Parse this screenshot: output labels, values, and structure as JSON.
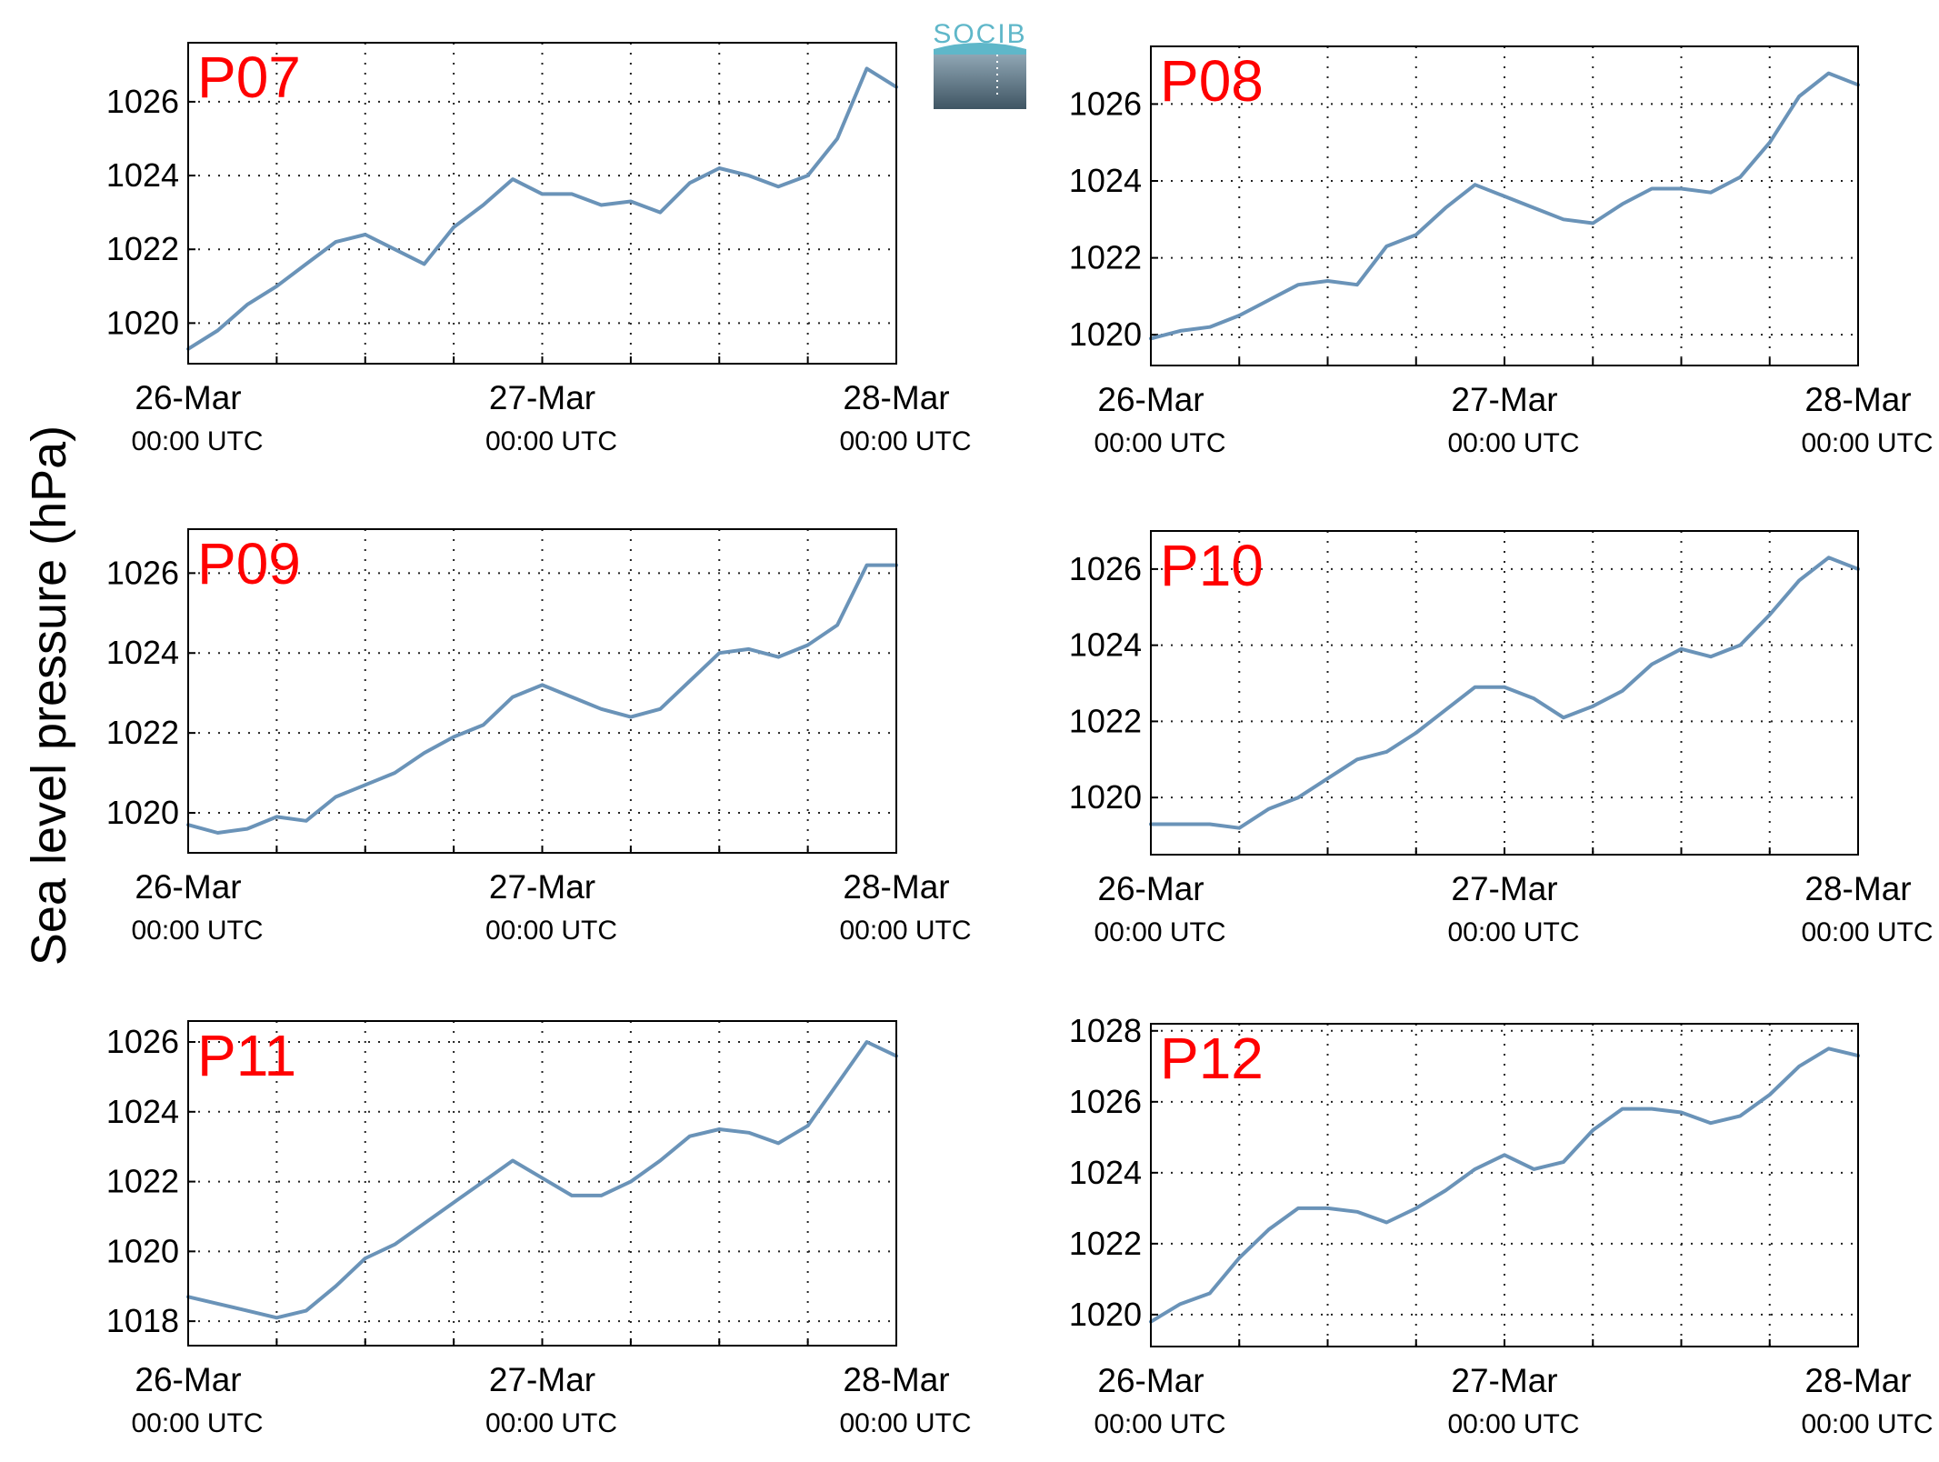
{
  "figure": {
    "ylabel": "Sea level pressure (hPa)",
    "logo_text": "SOCIB",
    "line_color": "#6a93b8",
    "title_color": "#ff0000"
  },
  "chart_data": [
    {
      "type": "line",
      "title": "P07",
      "x_ticks": [
        {
          "date": "26-Mar",
          "time": "00:00 UTC"
        },
        {
          "date": "27-Mar",
          "time": "00:00 UTC"
        },
        {
          "date": "28-Mar",
          "time": "00:00 UTC"
        }
      ],
      "x_range": [
        "26-Mar 00:00",
        "28-Mar 00:00"
      ],
      "x_hours_per_grid": 6,
      "ylim": [
        1018.9,
        1027.6
      ],
      "y_ticks": [
        1020,
        1022,
        1024,
        1026
      ],
      "grid": true,
      "x": [
        "26-Mar 00:00",
        "26-Mar 02:00",
        "26-Mar 04:00",
        "26-Mar 06:00",
        "26-Mar 08:00",
        "26-Mar 10:00",
        "26-Mar 12:00",
        "26-Mar 14:00",
        "26-Mar 16:00",
        "26-Mar 18:00",
        "26-Mar 20:00",
        "26-Mar 22:00",
        "27-Mar 00:00",
        "27-Mar 02:00",
        "27-Mar 04:00",
        "27-Mar 06:00",
        "27-Mar 08:00",
        "27-Mar 10:00",
        "27-Mar 12:00",
        "27-Mar 14:00",
        "27-Mar 16:00",
        "27-Mar 18:00",
        "27-Mar 20:00",
        "27-Mar 22:00",
        "28-Mar 00:00"
      ],
      "values": [
        1019.3,
        1019.8,
        1020.5,
        1021.0,
        1021.6,
        1022.2,
        1022.4,
        1022.0,
        1021.6,
        1022.6,
        1023.2,
        1023.9,
        1023.5,
        1023.5,
        1023.2,
        1023.3,
        1023.0,
        1023.8,
        1024.2,
        1024.0,
        1023.7,
        1024.0,
        1025.0,
        1026.9,
        1026.4
      ]
    },
    {
      "type": "line",
      "title": "P08",
      "x_ticks": [
        {
          "date": "26-Mar",
          "time": "00:00 UTC"
        },
        {
          "date": "27-Mar",
          "time": "00:00 UTC"
        },
        {
          "date": "28-Mar",
          "time": "00:00 UTC"
        }
      ],
      "x_range": [
        "26-Mar 00:00",
        "28-Mar 00:00"
      ],
      "x_hours_per_grid": 6,
      "ylim": [
        1019.2,
        1027.5
      ],
      "y_ticks": [
        1020,
        1022,
        1024,
        1026
      ],
      "grid": true,
      "x": [
        "26-Mar 00:00",
        "26-Mar 02:00",
        "26-Mar 04:00",
        "26-Mar 06:00",
        "26-Mar 08:00",
        "26-Mar 10:00",
        "26-Mar 12:00",
        "26-Mar 14:00",
        "26-Mar 16:00",
        "26-Mar 18:00",
        "26-Mar 20:00",
        "26-Mar 22:00",
        "27-Mar 00:00",
        "27-Mar 02:00",
        "27-Mar 04:00",
        "27-Mar 06:00",
        "27-Mar 08:00",
        "27-Mar 10:00",
        "27-Mar 12:00",
        "27-Mar 14:00",
        "27-Mar 16:00",
        "27-Mar 18:00",
        "27-Mar 20:00",
        "27-Mar 22:00",
        "28-Mar 00:00"
      ],
      "values": [
        1019.9,
        1020.1,
        1020.2,
        1020.5,
        1020.9,
        1021.3,
        1021.4,
        1021.3,
        1022.3,
        1022.6,
        1023.3,
        1023.9,
        1023.6,
        1023.3,
        1023.0,
        1022.9,
        1023.4,
        1023.8,
        1023.8,
        1023.7,
        1024.1,
        1025.0,
        1026.2,
        1026.8,
        1026.5
      ]
    },
    {
      "type": "line",
      "title": "P09",
      "x_ticks": [
        {
          "date": "26-Mar",
          "time": "00:00 UTC"
        },
        {
          "date": "27-Mar",
          "time": "00:00 UTC"
        },
        {
          "date": "28-Mar",
          "time": "00:00 UTC"
        }
      ],
      "x_range": [
        "26-Mar 00:00",
        "28-Mar 00:00"
      ],
      "x_hours_per_grid": 6,
      "ylim": [
        1019.0,
        1027.1
      ],
      "y_ticks": [
        1020,
        1022,
        1024,
        1026
      ],
      "grid": true,
      "x": [
        "26-Mar 00:00",
        "26-Mar 02:00",
        "26-Mar 04:00",
        "26-Mar 06:00",
        "26-Mar 08:00",
        "26-Mar 10:00",
        "26-Mar 12:00",
        "26-Mar 14:00",
        "26-Mar 16:00",
        "26-Mar 18:00",
        "26-Mar 20:00",
        "26-Mar 22:00",
        "27-Mar 00:00",
        "27-Mar 02:00",
        "27-Mar 04:00",
        "27-Mar 06:00",
        "27-Mar 08:00",
        "27-Mar 10:00",
        "27-Mar 12:00",
        "27-Mar 14:00",
        "27-Mar 16:00",
        "27-Mar 18:00",
        "27-Mar 20:00",
        "27-Mar 22:00",
        "28-Mar 00:00"
      ],
      "values": [
        1019.7,
        1019.5,
        1019.6,
        1019.9,
        1019.8,
        1020.4,
        1020.7,
        1021.0,
        1021.5,
        1021.9,
        1022.2,
        1022.9,
        1023.2,
        1022.9,
        1022.6,
        1022.4,
        1022.6,
        1023.3,
        1024.0,
        1024.1,
        1023.9,
        1024.2,
        1024.7,
        1026.2,
        1026.2
      ]
    },
    {
      "type": "line",
      "title": "P10",
      "x_ticks": [
        {
          "date": "26-Mar",
          "time": "00:00 UTC"
        },
        {
          "date": "27-Mar",
          "time": "00:00 UTC"
        },
        {
          "date": "28-Mar",
          "time": "00:00 UTC"
        }
      ],
      "x_range": [
        "26-Mar 00:00",
        "28-Mar 00:00"
      ],
      "x_hours_per_grid": 6,
      "ylim": [
        1018.5,
        1027.0
      ],
      "y_ticks": [
        1020,
        1022,
        1024,
        1026
      ],
      "grid": true,
      "x": [
        "26-Mar 00:00",
        "26-Mar 02:00",
        "26-Mar 04:00",
        "26-Mar 06:00",
        "26-Mar 08:00",
        "26-Mar 10:00",
        "26-Mar 12:00",
        "26-Mar 14:00",
        "26-Mar 16:00",
        "26-Mar 18:00",
        "26-Mar 20:00",
        "26-Mar 22:00",
        "27-Mar 00:00",
        "27-Mar 02:00",
        "27-Mar 04:00",
        "27-Mar 06:00",
        "27-Mar 08:00",
        "27-Mar 10:00",
        "27-Mar 12:00",
        "27-Mar 14:00",
        "27-Mar 16:00",
        "27-Mar 18:00",
        "27-Mar 20:00",
        "27-Mar 22:00",
        "28-Mar 00:00"
      ],
      "values": [
        1019.3,
        1019.3,
        1019.3,
        1019.2,
        1019.7,
        1020.0,
        1020.5,
        1021.0,
        1021.2,
        1021.7,
        1022.3,
        1022.9,
        1022.9,
        1022.6,
        1022.1,
        1022.4,
        1022.8,
        1023.5,
        1023.9,
        1023.7,
        1024.0,
        1024.8,
        1025.7,
        1026.3,
        1026.0
      ]
    },
    {
      "type": "line",
      "title": "P11",
      "x_ticks": [
        {
          "date": "26-Mar",
          "time": "00:00 UTC"
        },
        {
          "date": "27-Mar",
          "time": "00:00 UTC"
        },
        {
          "date": "28-Mar",
          "time": "00:00 UTC"
        }
      ],
      "x_range": [
        "26-Mar 00:00",
        "28-Mar 00:00"
      ],
      "x_hours_per_grid": 6,
      "ylim": [
        1017.3,
        1026.6
      ],
      "y_ticks": [
        1018,
        1020,
        1022,
        1024,
        1026
      ],
      "grid": true,
      "x": [
        "26-Mar 00:00",
        "26-Mar 02:00",
        "26-Mar 04:00",
        "26-Mar 06:00",
        "26-Mar 08:00",
        "26-Mar 10:00",
        "26-Mar 12:00",
        "26-Mar 14:00",
        "26-Mar 16:00",
        "26-Mar 18:00",
        "26-Mar 20:00",
        "26-Mar 22:00",
        "27-Mar 00:00",
        "27-Mar 02:00",
        "27-Mar 04:00",
        "27-Mar 06:00",
        "27-Mar 08:00",
        "27-Mar 10:00",
        "27-Mar 12:00",
        "27-Mar 14:00",
        "27-Mar 16:00",
        "27-Mar 18:00",
        "27-Mar 20:00",
        "27-Mar 22:00",
        "28-Mar 00:00"
      ],
      "values": [
        1018.7,
        1018.5,
        1018.3,
        1018.1,
        1018.3,
        1019.0,
        1019.8,
        1020.2,
        1020.8,
        1021.4,
        1022.0,
        1022.6,
        1022.1,
        1021.6,
        1021.6,
        1022.0,
        1022.6,
        1023.3,
        1023.5,
        1023.4,
        1023.1,
        1023.6,
        1024.8,
        1026.0,
        1025.6
      ]
    },
    {
      "type": "line",
      "title": "P12",
      "x_ticks": [
        {
          "date": "26-Mar",
          "time": "00:00 UTC"
        },
        {
          "date": "27-Mar",
          "time": "00:00 UTC"
        },
        {
          "date": "28-Mar",
          "time": "00:00 UTC"
        }
      ],
      "x_range": [
        "26-Mar 00:00",
        "28-Mar 00:00"
      ],
      "x_hours_per_grid": 6,
      "ylim": [
        1019.1,
        1028.2
      ],
      "y_ticks": [
        1020,
        1022,
        1024,
        1026,
        1028
      ],
      "grid": true,
      "x": [
        "26-Mar 00:00",
        "26-Mar 02:00",
        "26-Mar 04:00",
        "26-Mar 06:00",
        "26-Mar 08:00",
        "26-Mar 10:00",
        "26-Mar 12:00",
        "26-Mar 14:00",
        "26-Mar 16:00",
        "26-Mar 18:00",
        "26-Mar 20:00",
        "26-Mar 22:00",
        "27-Mar 00:00",
        "27-Mar 02:00",
        "27-Mar 04:00",
        "27-Mar 06:00",
        "27-Mar 08:00",
        "27-Mar 10:00",
        "27-Mar 12:00",
        "27-Mar 14:00",
        "27-Mar 16:00",
        "27-Mar 18:00",
        "27-Mar 20:00",
        "27-Mar 22:00",
        "28-Mar 00:00"
      ],
      "values": [
        1019.8,
        1020.3,
        1020.6,
        1021.6,
        1022.4,
        1023.0,
        1023.0,
        1022.9,
        1022.6,
        1023.0,
        1023.5,
        1024.1,
        1024.5,
        1024.1,
        1024.3,
        1025.2,
        1025.8,
        1025.8,
        1025.7,
        1025.4,
        1025.6,
        1026.2,
        1027.0,
        1027.5,
        1027.3
      ]
    }
  ]
}
